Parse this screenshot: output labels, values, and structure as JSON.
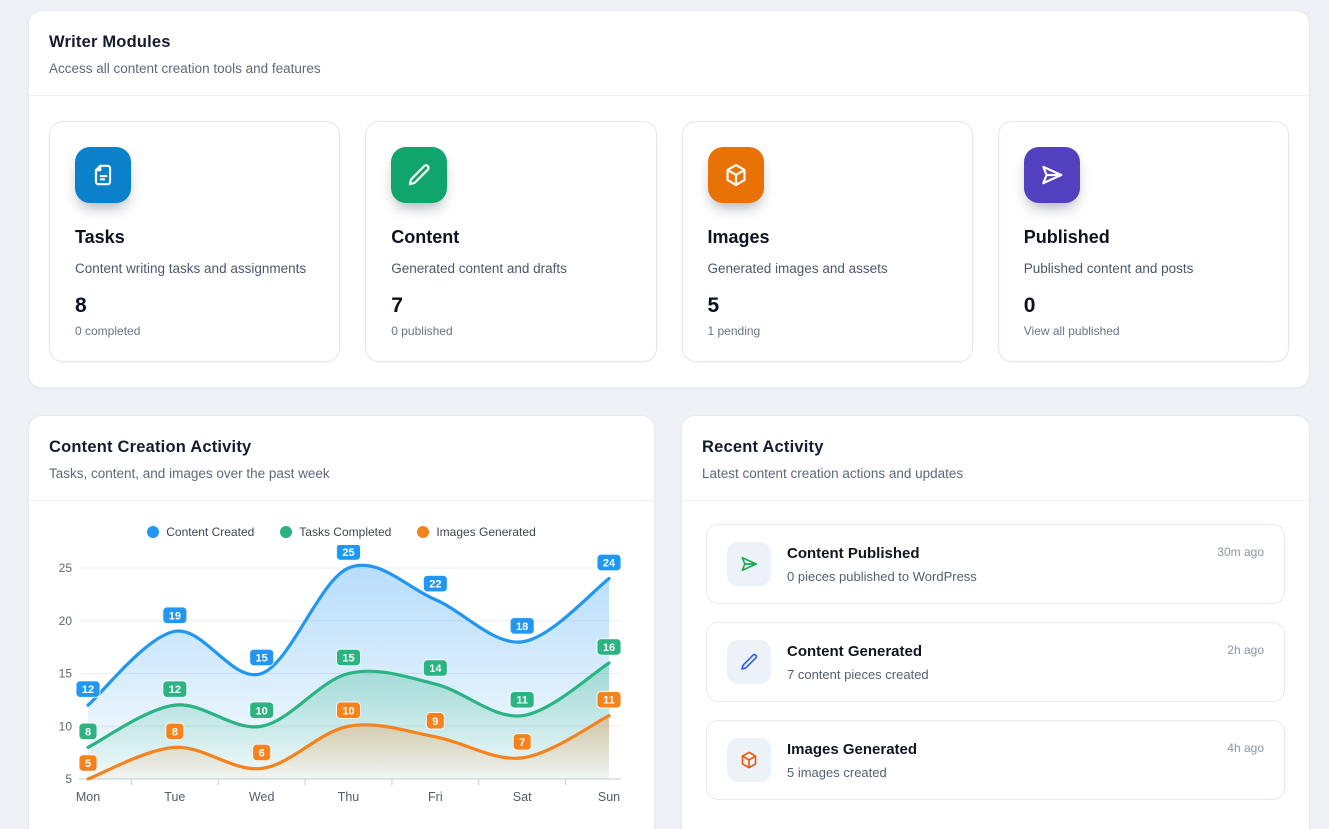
{
  "modules_section": {
    "title": "Writer Modules",
    "subtitle": "Access all content creation tools and features",
    "cards": [
      {
        "icon": "file-text-icon",
        "color": "#0b80cb",
        "title": "Tasks",
        "description": "Content writing tasks and assignments",
        "count": "8",
        "sub": "0 completed"
      },
      {
        "icon": "pencil-icon",
        "color": "#10a56d",
        "title": "Content",
        "description": "Generated content and drafts",
        "count": "7",
        "sub": "0 published"
      },
      {
        "icon": "cube-icon",
        "color": "#e97206",
        "title": "Images",
        "description": "Generated images and assets",
        "count": "5",
        "sub": "1 pending"
      },
      {
        "icon": "send-icon",
        "color": "#5340bf",
        "title": "Published",
        "description": "Published content and posts",
        "count": "0",
        "sub": "View all published"
      }
    ]
  },
  "chart_section": {
    "title": "Content Creation Activity",
    "subtitle": "Tasks, content, and images over the past week"
  },
  "chart_data": {
    "type": "line",
    "title": "Content Creation Activity",
    "categories": [
      "Mon",
      "Tue",
      "Wed",
      "Thu",
      "Fri",
      "Sat",
      "Sun"
    ],
    "series": [
      {
        "name": "Content Created",
        "color": "#2196f3",
        "values": [
          12,
          19,
          15,
          25,
          22,
          18,
          24
        ]
      },
      {
        "name": "Tasks Completed",
        "color": "#2bb381",
        "values": [
          8,
          12,
          10,
          15,
          14,
          11,
          16
        ]
      },
      {
        "name": "Images Generated",
        "color": "#f5821d",
        "values": [
          5,
          8,
          6,
          10,
          9,
          7,
          11
        ]
      }
    ],
    "xlabel": "",
    "ylabel": "",
    "ylim": [
      5,
      25
    ],
    "yticks": [
      5,
      10,
      15,
      20,
      25
    ],
    "smooth": true,
    "area_fill": true,
    "data_labels": true,
    "grid": true,
    "legend_position": "top"
  },
  "activity_section": {
    "title": "Recent Activity",
    "subtitle": "Latest content creation actions and updates",
    "items": [
      {
        "icon": "send-icon",
        "icon_color": "#1ca94c",
        "title": "Content Published",
        "sub": "0 pieces published to WordPress",
        "time": "30m ago"
      },
      {
        "icon": "pencil-icon",
        "icon_color": "#2f5fe0",
        "title": "Content Generated",
        "sub": "7 content pieces created",
        "time": "2h ago"
      },
      {
        "icon": "cube-icon",
        "icon_color": "#e8590c",
        "title": "Images Generated",
        "sub": "5 images created",
        "time": "4h ago"
      }
    ]
  }
}
